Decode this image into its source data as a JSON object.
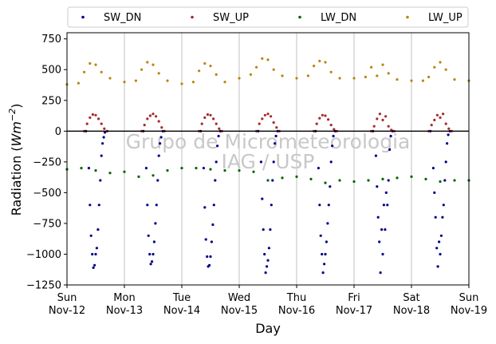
{
  "chart_data": {
    "type": "scatter",
    "xlabel": "Day",
    "ylabel_main": "Radiation (",
    "ylabel_unit": "Wm",
    "ylabel_exp": "−2",
    "ylabel_close": ")",
    "ylim": [
      -1250,
      800
    ],
    "yticks": [
      750,
      500,
      250,
      0,
      -250,
      -500,
      -750,
      -1000,
      -1250
    ],
    "xlim": [
      0,
      7
    ],
    "xticks": [
      {
        "day": 0,
        "line1": "Sun",
        "line2": "Nov-12"
      },
      {
        "day": 1,
        "line1": "Mon",
        "line2": "Nov-13"
      },
      {
        "day": 2,
        "line1": "Tue",
        "line2": "Nov-14"
      },
      {
        "day": 3,
        "line1": "Wed",
        "line2": "Nov-15"
      },
      {
        "day": 4,
        "line1": "Thu",
        "line2": "Nov-16"
      },
      {
        "day": 5,
        "line1": "Fri",
        "line2": "Nov-17"
      },
      {
        "day": 6,
        "line1": "Sat",
        "line2": "Nov-18"
      },
      {
        "day": 7,
        "line1": "Sun",
        "line2": "Nov-19"
      }
    ],
    "grid": "vertical",
    "zero_line": true,
    "legend_position": "top",
    "watermark_line1": "Grupo de Micrometeorologia",
    "watermark_line2": "IAG / USP",
    "series": [
      {
        "name": "SW_DN",
        "color": "#00008b",
        "x": [
          0.33,
          0.38,
          0.4,
          0.42,
          0.44,
          0.46,
          0.48,
          0.5,
          0.52,
          0.54,
          0.56,
          0.58,
          0.6,
          0.62,
          0.64,
          0.66,
          0.7,
          1.33,
          1.38,
          1.4,
          1.42,
          1.44,
          1.46,
          1.48,
          1.5,
          1.52,
          1.54,
          1.56,
          1.58,
          1.6,
          1.62,
          1.64,
          1.67,
          2.33,
          2.38,
          2.4,
          2.42,
          2.44,
          2.46,
          2.48,
          2.5,
          2.52,
          2.54,
          2.56,
          2.58,
          2.6,
          2.62,
          2.64,
          2.67,
          3.33,
          3.38,
          3.4,
          3.42,
          3.44,
          3.46,
          3.48,
          3.5,
          3.52,
          3.54,
          3.56,
          3.58,
          3.6,
          3.62,
          3.64,
          3.67,
          4.33,
          4.38,
          4.4,
          4.42,
          4.44,
          4.46,
          4.48,
          4.5,
          4.52,
          4.54,
          4.56,
          4.58,
          4.6,
          4.62,
          4.64,
          4.67,
          5.33,
          5.38,
          5.4,
          5.42,
          5.44,
          5.46,
          5.48,
          5.5,
          5.52,
          5.54,
          5.56,
          5.58,
          5.6,
          5.62,
          5.64,
          5.67,
          6.33,
          6.38,
          6.4,
          6.42,
          6.44,
          6.46,
          6.48,
          6.5,
          6.52,
          6.54,
          6.56,
          6.58,
          6.6,
          6.62,
          6.64,
          6.67
        ],
        "y": [
          0,
          -300,
          -600,
          -850,
          -1000,
          -1110,
          -1090,
          -1000,
          -950,
          -800,
          -600,
          -400,
          -200,
          -100,
          -50,
          -10,
          0,
          0,
          -300,
          -600,
          -850,
          -1000,
          -1080,
          -1060,
          -1000,
          -900,
          -750,
          -600,
          -400,
          -200,
          -100,
          -50,
          0,
          0,
          -300,
          -620,
          -880,
          -1020,
          -1100,
          -1090,
          -1020,
          -900,
          -760,
          -600,
          -400,
          -250,
          -120,
          -40,
          0,
          0,
          -250,
          -550,
          -800,
          -1000,
          -1150,
          -1100,
          -1050,
          -950,
          -800,
          -600,
          -400,
          -250,
          -100,
          -40,
          0,
          0,
          -300,
          -600,
          -850,
          -1000,
          -1150,
          -1080,
          -1000,
          -900,
          -750,
          -600,
          -450,
          -250,
          -120,
          -40,
          0,
          0,
          -200,
          -450,
          -700,
          -900,
          -1150,
          -800,
          -1000,
          -600,
          -800,
          -500,
          -600,
          -400,
          -150,
          -40,
          0,
          0,
          -300,
          -500,
          -700,
          -950,
          -1100,
          -900,
          -1000,
          -850,
          -700,
          -600,
          -400,
          -250,
          -100,
          -30,
          0
        ]
      },
      {
        "name": "SW_UP",
        "color": "#a52a2a",
        "x": [
          0.3,
          0.35,
          0.4,
          0.45,
          0.5,
          0.55,
          0.6,
          0.65,
          0.7,
          1.3,
          1.35,
          1.4,
          1.45,
          1.5,
          1.55,
          1.6,
          1.65,
          1.7,
          2.3,
          2.35,
          2.4,
          2.45,
          2.5,
          2.55,
          2.6,
          2.65,
          2.7,
          3.3,
          3.35,
          3.4,
          3.45,
          3.5,
          3.55,
          3.6,
          3.65,
          3.7,
          4.3,
          4.35,
          4.4,
          4.45,
          4.5,
          4.55,
          4.6,
          4.65,
          4.7,
          5.3,
          5.35,
          5.4,
          5.45,
          5.5,
          5.55,
          5.6,
          5.65,
          5.7,
          6.3,
          6.35,
          6.4,
          6.45,
          6.5,
          6.55,
          6.6,
          6.65,
          6.7
        ],
        "y": [
          0,
          60,
          110,
          135,
          130,
          100,
          60,
          20,
          0,
          0,
          50,
          100,
          125,
          140,
          120,
          80,
          30,
          0,
          0,
          60,
          110,
          135,
          130,
          100,
          60,
          20,
          0,
          0,
          60,
          100,
          130,
          140,
          120,
          70,
          30,
          0,
          0,
          60,
          105,
          130,
          125,
          95,
          50,
          15,
          0,
          0,
          40,
          100,
          140,
          90,
          120,
          40,
          10,
          0,
          0,
          50,
          90,
          130,
          110,
          140,
          60,
          20,
          0
        ]
      },
      {
        "name": "LW_DN",
        "color": "#006400",
        "x": [
          0.0,
          0.25,
          0.5,
          0.75,
          1.0,
          1.25,
          1.5,
          1.75,
          2.0,
          2.25,
          2.5,
          2.75,
          3.0,
          3.25,
          3.5,
          3.75,
          4.0,
          4.25,
          4.5,
          4.75,
          5.0,
          5.25,
          5.5,
          5.75,
          6.0,
          6.25,
          6.5,
          6.75,
          7.0
        ],
        "y": [
          -310,
          -300,
          -320,
          -340,
          -330,
          -370,
          -360,
          -320,
          -300,
          -300,
          -310,
          -320,
          -320,
          -330,
          -400,
          -380,
          -370,
          -390,
          -420,
          -400,
          -410,
          -400,
          -390,
          -380,
          -370,
          -390,
          -410,
          -400,
          -400
        ]
      },
      {
        "name": "LW_UP",
        "color": "#b8860b",
        "x": [
          0.0,
          0.2,
          0.3,
          0.4,
          0.5,
          0.6,
          0.75,
          1.0,
          1.2,
          1.3,
          1.4,
          1.5,
          1.6,
          1.75,
          2.0,
          2.2,
          2.3,
          2.4,
          2.5,
          2.6,
          2.75,
          3.0,
          3.2,
          3.3,
          3.4,
          3.5,
          3.6,
          3.75,
          4.0,
          4.2,
          4.3,
          4.4,
          4.5,
          4.6,
          4.75,
          5.0,
          5.2,
          5.3,
          5.4,
          5.5,
          5.6,
          5.75,
          6.0,
          6.2,
          6.3,
          6.4,
          6.5,
          6.6,
          6.75,
          7.0
        ],
        "y": [
          380,
          390,
          480,
          550,
          540,
          480,
          430,
          400,
          410,
          500,
          560,
          540,
          470,
          410,
          385,
          400,
          490,
          550,
          530,
          460,
          400,
          430,
          460,
          520,
          590,
          580,
          500,
          450,
          430,
          450,
          530,
          570,
          560,
          480,
          430,
          430,
          440,
          520,
          450,
          540,
          470,
          420,
          410,
          410,
          440,
          520,
          560,
          500,
          420,
          410
        ]
      }
    ]
  }
}
